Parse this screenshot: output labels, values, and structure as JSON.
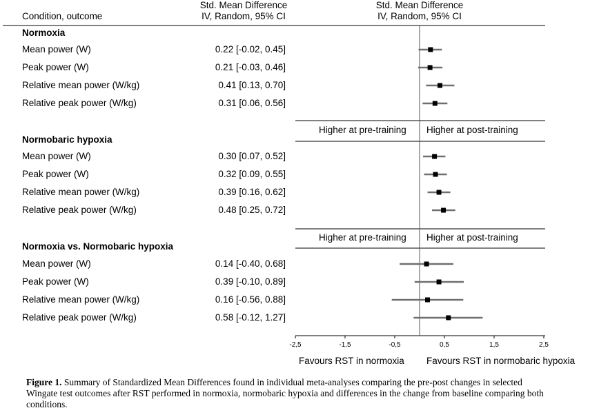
{
  "header": {
    "condition_col": "Condition, outcome",
    "smd_col_line1": "Std. Mean Difference",
    "smd_col_line2": "IV, Random, 95% CI",
    "plot_col_line1": "Std. Mean Difference",
    "plot_col_line2": "IV, Random, 95% CI"
  },
  "chart_data": {
    "type": "forest",
    "xlim": [
      -2.5,
      2.5
    ],
    "x_ticks": [
      "-2,5",
      "-1,5",
      "-0,5",
      "0,5",
      "1,5",
      "2,5"
    ],
    "x_tick_values": [
      -2.5,
      -1.5,
      -0.5,
      0.5,
      1.5,
      2.5
    ],
    "groups": [
      {
        "title": "Normoxia",
        "dir_left": "Higher at pre-training",
        "dir_right": "Higher at post-training",
        "rows": [
          {
            "label": "Mean power (W)",
            "ci_text": "0.22 [-0.02, 0.45]",
            "est": 0.22,
            "lo": -0.02,
            "hi": 0.45
          },
          {
            "label": "Peak power (W)",
            "ci_text": "0.21 [-0.03, 0.46]",
            "est": 0.21,
            "lo": -0.03,
            "hi": 0.46
          },
          {
            "label": "Relative mean power (W/kg)",
            "ci_text": "0.41 [0.13, 0.70]",
            "est": 0.41,
            "lo": 0.13,
            "hi": 0.7
          },
          {
            "label": "Relative peak power (W/kg)",
            "ci_text": "0.31 [0.06, 0.56]",
            "est": 0.31,
            "lo": 0.06,
            "hi": 0.56
          }
        ]
      },
      {
        "title": "Normobaric hypoxia",
        "dir_left": "Higher at pre-training",
        "dir_right": "Higher at post-training",
        "rows": [
          {
            "label": "Mean power (W)",
            "ci_text": "0.30 [0.07, 0.52]",
            "est": 0.3,
            "lo": 0.07,
            "hi": 0.52
          },
          {
            "label": "Peak power (W)",
            "ci_text": "0.32 [0.09, 0.55]",
            "est": 0.32,
            "lo": 0.09,
            "hi": 0.55
          },
          {
            "label": "Relative mean power (W/kg)",
            "ci_text": "0.39 [0.16, 0.62]",
            "est": 0.39,
            "lo": 0.16,
            "hi": 0.62
          },
          {
            "label": "Relative peak power (W/kg)",
            "ci_text": "0.48 [0.25, 0.72]",
            "est": 0.48,
            "lo": 0.25,
            "hi": 0.72
          }
        ]
      },
      {
        "title": "Normoxia vs. Normobaric hypoxia",
        "dir_left": "Favours RST in normoxia",
        "dir_right": "Favours RST in normobaric hypoxia",
        "rows": [
          {
            "label": "Mean power (W)",
            "ci_text": "0.14 [-0.40, 0.68]",
            "est": 0.14,
            "lo": -0.4,
            "hi": 0.68
          },
          {
            "label": "Peak power (W)",
            "ci_text": "0.39 [-0.10, 0.89]",
            "est": 0.39,
            "lo": -0.1,
            "hi": 0.89
          },
          {
            "label": "Relative mean power (W/kg)",
            "ci_text": "0.16 [-0.56, 0.88]",
            "est": 0.16,
            "lo": -0.56,
            "hi": 0.88
          },
          {
            "label": "Relative peak power (W/kg)",
            "ci_text": "0.58 [-0.12, 1.27]",
            "est": 0.58,
            "lo": -0.12,
            "hi": 1.27
          }
        ]
      }
    ]
  },
  "caption": {
    "prefix": "Figure 1.",
    "text": " Summary of Standardized Mean Differences found in individual meta-analyses comparing the pre-post changes in selected Wingate test outcomes after RST performed in normoxia, normobaric hypoxia and differences in the change from baseline comparing both conditions."
  },
  "colors": {
    "whisker": "#6f6f6f",
    "marker": "#000000",
    "axis": "#000000",
    "rule": "#000000"
  }
}
